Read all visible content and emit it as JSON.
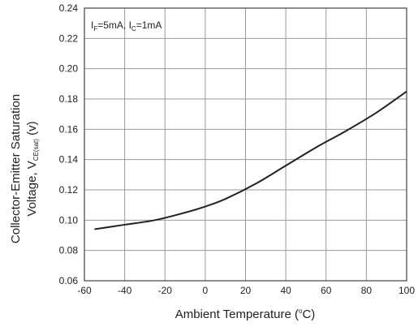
{
  "chart_data": {
    "type": "line",
    "title": "",
    "xlabel": "Ambient Temperature (°C)",
    "ylabel": "Collector-Emitter Saturation Voltage, VCE(sat) (v)",
    "xlim": [
      -60,
      100
    ],
    "ylim": [
      0.06,
      0.24
    ],
    "xticks": [
      -60,
      -40,
      -20,
      0,
      20,
      40,
      60,
      80,
      100
    ],
    "yticks": [
      0.06,
      0.08,
      0.1,
      0.12,
      0.14,
      0.16,
      0.18,
      0.2,
      0.22,
      0.24
    ],
    "ytick_labels": [
      "0.06",
      "0.08",
      "0.10",
      "0.12",
      "0.14",
      "0.16",
      "0.18",
      "0.20",
      "0.22",
      "0.24"
    ],
    "grid": true,
    "annotation": "IF=5mA, IC=1mA",
    "series": [
      {
        "x": [
          -55,
          -40,
          -25,
          -10,
          0,
          10,
          25,
          40,
          55,
          70,
          85,
          100
        ],
        "y": [
          0.094,
          0.097,
          0.1,
          0.105,
          0.109,
          0.114,
          0.124,
          0.136,
          0.148,
          0.159,
          0.171,
          0.185
        ]
      }
    ]
  },
  "labels": {
    "ylabel_line1": "Collector-Emitter Saturation",
    "ylabel_line2_prefix": "Voltage, V",
    "ylabel_line2_sub": "CE(sat)",
    "ylabel_line2_suffix": " (v)",
    "xlabel_prefix": "Ambient Temperature (",
    "xlabel_sup": "o",
    "xlabel_suffix": "C)",
    "annot_I1": "I",
    "annot_F": "F",
    "annot_mid": "=5mA, I",
    "annot_C": "C",
    "annot_end": "=1mA"
  },
  "colors": {
    "line": "#222222",
    "grid": "#9a9a9a",
    "frame": "#444444"
  }
}
